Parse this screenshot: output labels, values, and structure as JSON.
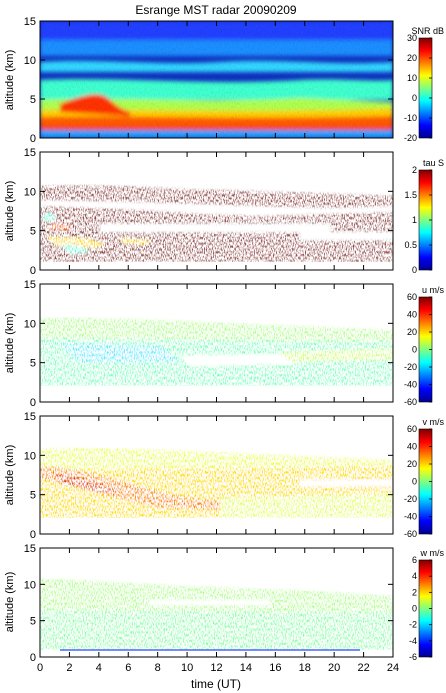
{
  "figure": {
    "title": "Esrange MST radar 20090209",
    "xlabel": "time (UT)",
    "x_ticks": [
      "0",
      "2",
      "4",
      "6",
      "8",
      "10",
      "12",
      "14",
      "16",
      "18",
      "20",
      "22",
      "24"
    ],
    "xlim": [
      0,
      24
    ],
    "ylabel": "altitude (km)",
    "y_ticks": [
      "0",
      "5",
      "10",
      "15"
    ],
    "ylim": [
      0,
      15
    ]
  },
  "chart_data": [
    {
      "type": "heatmap",
      "ylabel": "altitude (km)",
      "xlim": [
        0,
        24
      ],
      "ylim": [
        0,
        15
      ],
      "colorbar": {
        "label": "SNR dB",
        "range": [
          -20,
          30
        ],
        "ticks": [
          "30",
          "20",
          "10",
          "0",
          "-10",
          "-20"
        ]
      },
      "colormap": "jet"
    },
    {
      "type": "heatmap",
      "ylabel": "altitude (km)",
      "xlim": [
        0,
        24
      ],
      "ylim": [
        0,
        15
      ],
      "colorbar": {
        "label": "tau S",
        "range": [
          0,
          2
        ],
        "ticks": [
          "2",
          "1.5",
          "1",
          "0.5",
          "0"
        ]
      },
      "colormap": "jet"
    },
    {
      "type": "heatmap",
      "ylabel": "altitude (km)",
      "xlim": [
        0,
        24
      ],
      "ylim": [
        0,
        15
      ],
      "colorbar": {
        "label": "u m/s",
        "range": [
          -60,
          60
        ],
        "ticks": [
          "60",
          "40",
          "20",
          "0",
          "-20",
          "-40",
          "-60"
        ]
      },
      "colormap": "jet"
    },
    {
      "type": "heatmap",
      "ylabel": "altitude (km)",
      "xlim": [
        0,
        24
      ],
      "ylim": [
        0,
        15
      ],
      "colorbar": {
        "label": "v m/s",
        "range": [
          -60,
          60
        ],
        "ticks": [
          "60",
          "40",
          "20",
          "0",
          "-20",
          "-40",
          "-60"
        ]
      },
      "colormap": "jet"
    },
    {
      "type": "heatmap",
      "xlabel": "time (UT)",
      "ylabel": "altitude (km)",
      "xlim": [
        0,
        24
      ],
      "ylim": [
        0,
        15
      ],
      "colorbar": {
        "label": "w m/s",
        "range": [
          -6,
          6
        ],
        "ticks": [
          "6",
          "4",
          "2",
          "0",
          "-2",
          "-4",
          "-6"
        ]
      },
      "colormap": "jet"
    }
  ]
}
